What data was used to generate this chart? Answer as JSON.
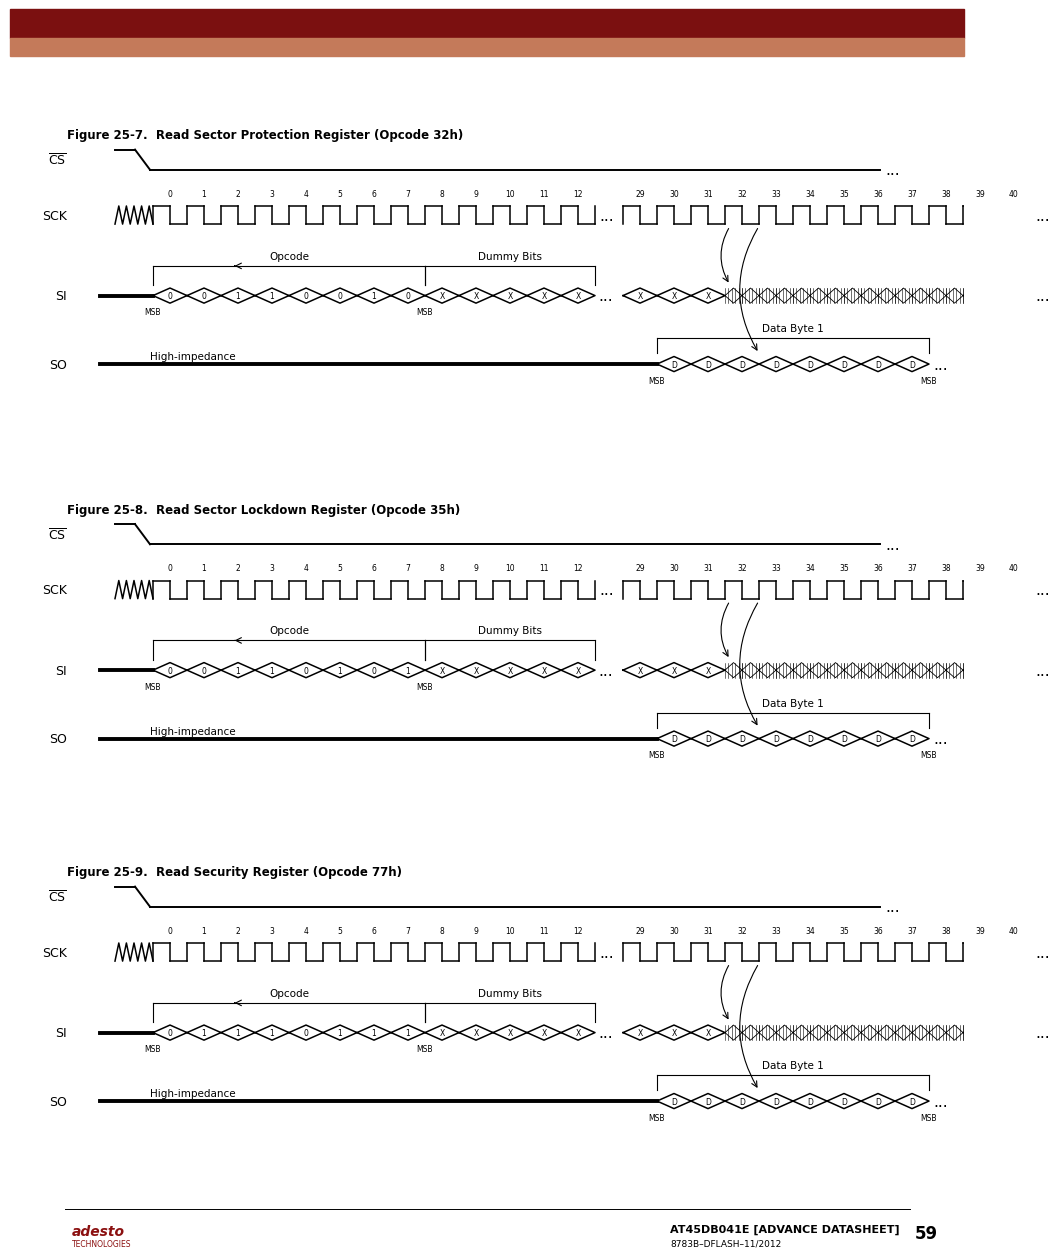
{
  "figures": [
    {
      "title": "Figure 25-7.  Read Sector Protection Register (Opcode 32h)",
      "opcode_labels": [
        "0",
        "0",
        "1",
        "1",
        "0",
        "0",
        "1",
        "0"
      ],
      "opcode_label": "Opcode",
      "dummy_label": "Dummy Bits",
      "data_label": "Data Byte 1"
    },
    {
      "title": "Figure 25-8.  Read Sector Lockdown Register (Opcode 35h)",
      "opcode_labels": [
        "0",
        "0",
        "1",
        "1",
        "0",
        "1",
        "0",
        "1"
      ],
      "opcode_label": "Opcode",
      "dummy_label": "Dummy Bits",
      "data_label": "Data Byte 1"
    },
    {
      "title": "Figure 25-9.  Read Security Register (Opcode 77h)",
      "opcode_labels": [
        "0",
        "1",
        "1",
        "1",
        "0",
        "1",
        "1",
        "1"
      ],
      "opcode_label": "Opcode",
      "dummy_label": "Dummy Bits",
      "data_label": "Data Byte 1"
    }
  ],
  "header_color_top": "#7B1010",
  "header_color_bottom": "#C47A5A",
  "footer_text": "AT45DB041E [ADVANCE DATASHEET]",
  "footer_sub": "8783B–DFLASH–11/2012",
  "page_number": "59"
}
